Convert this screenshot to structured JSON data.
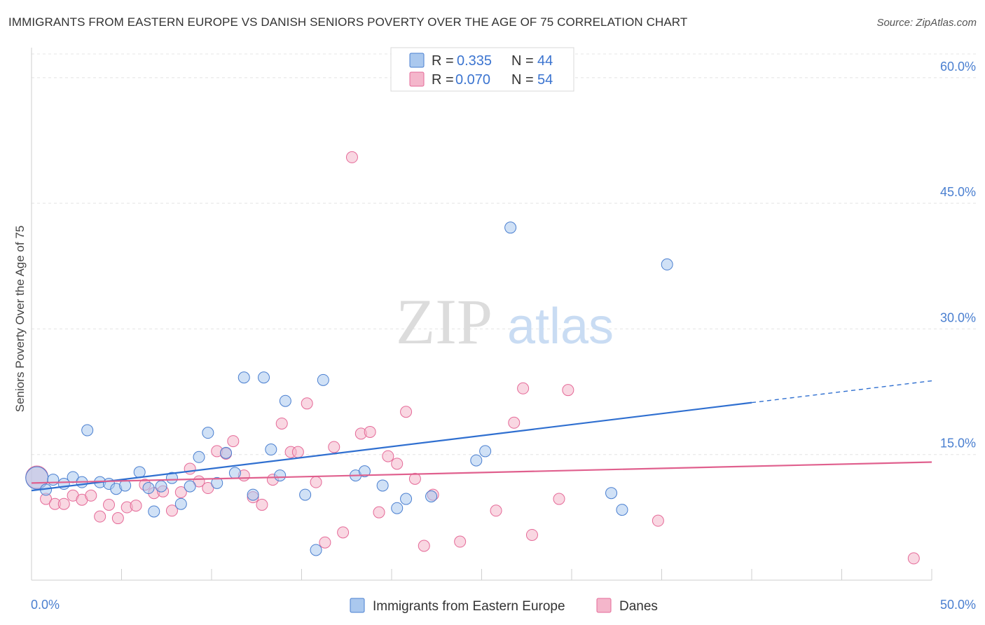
{
  "title": "IMMIGRANTS FROM EASTERN EUROPE VS DANISH SENIORS POVERTY OVER THE AGE OF 75 CORRELATION CHART",
  "source": "Source: ZipAtlas.com",
  "watermark": {
    "zip": "ZIP",
    "atlas": "atlas"
  },
  "colors": {
    "blue": "#4a7fd0",
    "blue_fill": "#aac8ee",
    "blue_line": "#2f6fd0",
    "pink": "#e56a98",
    "pink_fill": "#f4b6cb",
    "pink_line": "#e0608e"
  },
  "legend": {
    "r_label": "R =",
    "n_label": "N =",
    "rows": [
      {
        "r": "0.335",
        "n": "44"
      },
      {
        "r": "0.070",
        "n": "54"
      }
    ]
  },
  "chart_data": {
    "type": "scatter",
    "ylabel": "Seniors Poverty Over the Age of 75",
    "xlim": [
      0,
      50
    ],
    "ylim": [
      0,
      63
    ],
    "x_tick_labels": [
      "0.0%",
      "50.0%"
    ],
    "y_ticks": [
      15,
      30,
      45,
      60
    ],
    "y_tick_labels": [
      "15.0%",
      "30.0%",
      "45.0%",
      "60.0%"
    ],
    "grid": true,
    "series": [
      {
        "name": "Immigrants from Eastern Europe",
        "color": "blue",
        "points": [
          [
            0.3,
            12.2
          ],
          [
            0.8,
            10.8
          ],
          [
            1.2,
            12.0
          ],
          [
            1.8,
            11.5
          ],
          [
            2.3,
            12.3
          ],
          [
            2.8,
            11.7
          ],
          [
            3.1,
            17.9
          ],
          [
            3.8,
            11.7
          ],
          [
            4.3,
            11.5
          ],
          [
            4.7,
            10.9
          ],
          [
            5.2,
            11.3
          ],
          [
            6.0,
            12.9
          ],
          [
            6.5,
            11.0
          ],
          [
            6.8,
            8.2
          ],
          [
            7.2,
            11.2
          ],
          [
            7.8,
            12.2
          ],
          [
            8.3,
            9.1
          ],
          [
            8.8,
            11.2
          ],
          [
            9.3,
            14.7
          ],
          [
            9.8,
            17.6
          ],
          [
            10.3,
            11.6
          ],
          [
            10.8,
            15.2
          ],
          [
            11.3,
            12.8
          ],
          [
            11.8,
            24.2
          ],
          [
            12.3,
            10.2
          ],
          [
            12.9,
            24.2
          ],
          [
            13.3,
            15.6
          ],
          [
            13.8,
            12.5
          ],
          [
            14.1,
            21.4
          ],
          [
            15.2,
            10.2
          ],
          [
            15.8,
            3.6
          ],
          [
            16.2,
            23.9
          ],
          [
            18.0,
            12.5
          ],
          [
            18.5,
            13.0
          ],
          [
            19.5,
            11.3
          ],
          [
            20.3,
            8.6
          ],
          [
            20.8,
            9.7
          ],
          [
            22.2,
            10.0
          ],
          [
            24.7,
            14.3
          ],
          [
            25.2,
            15.4
          ],
          [
            26.6,
            42.1
          ],
          [
            32.2,
            10.4
          ],
          [
            32.8,
            8.4
          ],
          [
            35.3,
            37.7
          ]
        ],
        "trend": {
          "x0": 0,
          "y0": 10.7,
          "x1": 40,
          "y1": 21.2,
          "x_dash_end": 50,
          "y_dash_end": 23.8
        }
      },
      {
        "name": "Danes",
        "color": "pink",
        "points": [
          [
            0.3,
            12.3
          ],
          [
            0.8,
            9.7
          ],
          [
            1.3,
            9.1
          ],
          [
            1.8,
            9.1
          ],
          [
            2.3,
            10.1
          ],
          [
            2.8,
            9.6
          ],
          [
            3.3,
            10.1
          ],
          [
            3.8,
            7.6
          ],
          [
            4.3,
            9.0
          ],
          [
            4.8,
            7.4
          ],
          [
            5.3,
            8.7
          ],
          [
            5.8,
            8.9
          ],
          [
            6.3,
            11.4
          ],
          [
            6.8,
            10.4
          ],
          [
            7.3,
            10.6
          ],
          [
            7.8,
            8.3
          ],
          [
            8.3,
            10.5
          ],
          [
            8.8,
            13.3
          ],
          [
            9.3,
            11.8
          ],
          [
            9.8,
            11.0
          ],
          [
            10.3,
            15.4
          ],
          [
            10.8,
            15.1
          ],
          [
            11.2,
            16.6
          ],
          [
            11.8,
            12.5
          ],
          [
            12.3,
            9.9
          ],
          [
            12.8,
            9.0
          ],
          [
            13.4,
            12.0
          ],
          [
            13.9,
            18.7
          ],
          [
            14.4,
            15.3
          ],
          [
            14.8,
            15.3
          ],
          [
            15.3,
            21.1
          ],
          [
            15.8,
            11.7
          ],
          [
            16.3,
            4.5
          ],
          [
            16.8,
            15.9
          ],
          [
            17.3,
            5.7
          ],
          [
            17.8,
            50.5
          ],
          [
            18.3,
            17.5
          ],
          [
            18.8,
            17.7
          ],
          [
            19.3,
            8.1
          ],
          [
            19.8,
            14.8
          ],
          [
            20.3,
            13.9
          ],
          [
            20.8,
            20.1
          ],
          [
            21.3,
            12.1
          ],
          [
            21.8,
            4.1
          ],
          [
            22.3,
            10.2
          ],
          [
            23.8,
            4.6
          ],
          [
            25.8,
            8.3
          ],
          [
            26.8,
            18.8
          ],
          [
            27.3,
            22.9
          ],
          [
            27.8,
            5.4
          ],
          [
            29.3,
            9.7
          ],
          [
            29.8,
            22.7
          ],
          [
            34.8,
            7.1
          ],
          [
            49.0,
            2.6
          ]
        ],
        "trend": {
          "x0": 0,
          "y0": 11.6,
          "x1": 50,
          "y1": 14.1
        }
      }
    ]
  }
}
